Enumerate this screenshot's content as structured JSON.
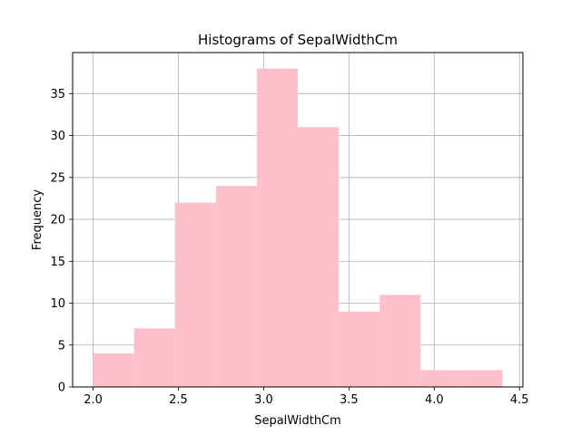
{
  "chart_data": {
    "type": "bar",
    "title": "Histograms of SepalWidthCm",
    "xlabel": "SepalWidthCm",
    "ylabel": "Frequency",
    "bins": [
      {
        "x0": 2.0,
        "x1": 2.24,
        "value": 4
      },
      {
        "x0": 2.24,
        "x1": 2.48,
        "value": 7
      },
      {
        "x0": 2.48,
        "x1": 2.72,
        "value": 22
      },
      {
        "x0": 2.72,
        "x1": 2.96,
        "value": 24
      },
      {
        "x0": 2.96,
        "x1": 3.2,
        "value": 38
      },
      {
        "x0": 3.2,
        "x1": 3.44,
        "value": 31
      },
      {
        "x0": 3.44,
        "x1": 3.68,
        "value": 9
      },
      {
        "x0": 3.68,
        "x1": 3.92,
        "value": 11
      },
      {
        "x0": 3.92,
        "x1": 4.16,
        "value": 2
      },
      {
        "x0": 4.16,
        "x1": 4.4,
        "value": 2
      }
    ],
    "xlim": [
      1.88,
      4.52
    ],
    "ylim": [
      0,
      39.9
    ],
    "xticks": [
      2.0,
      2.5,
      3.0,
      3.5,
      4.0,
      4.5
    ],
    "xtick_labels": [
      "2.0",
      "2.5",
      "3.0",
      "3.5",
      "4.0",
      "4.5"
    ],
    "yticks": [
      0,
      5,
      10,
      15,
      20,
      25,
      30,
      35
    ],
    "ytick_labels": [
      "0",
      "5",
      "10",
      "15",
      "20",
      "25",
      "30",
      "35"
    ],
    "grid": true,
    "bar_color": "#ffc0cb",
    "grid_color": "#b0b0b0"
  }
}
